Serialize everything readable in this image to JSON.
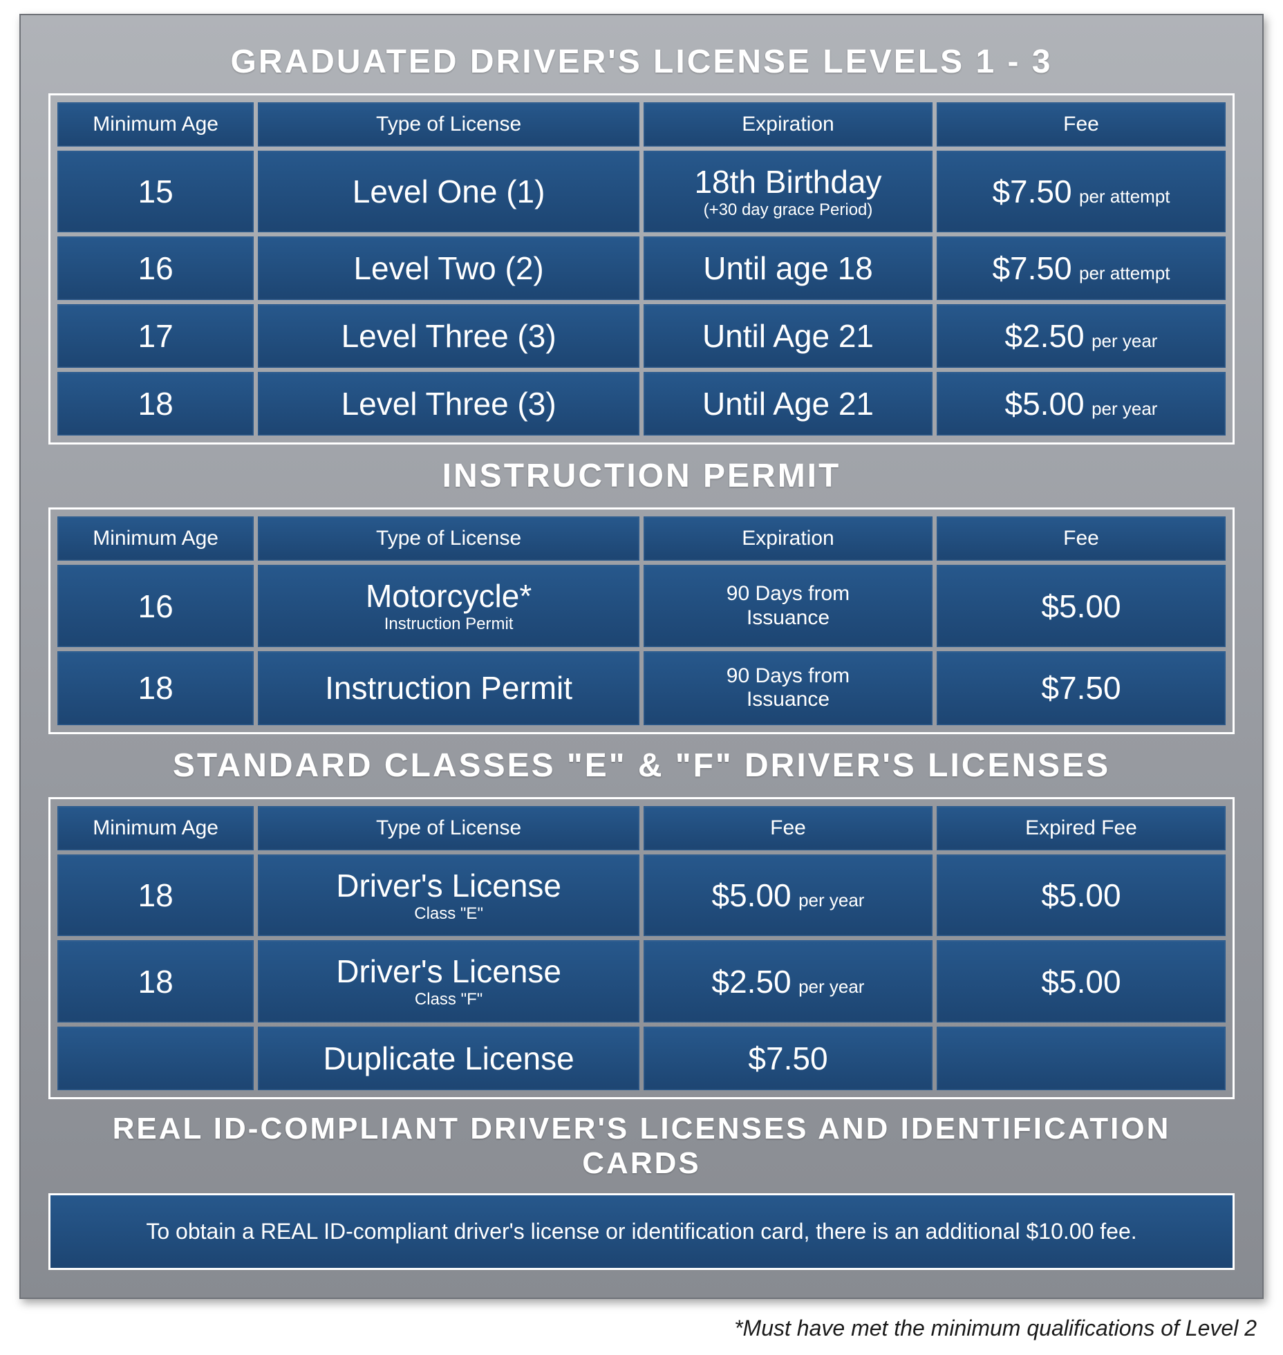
{
  "colors": {
    "panel_bg_top": "#b0b3b8",
    "panel_bg_bottom": "#888b91",
    "cell_bg_top": "#27588c",
    "cell_bg_bottom": "#1d4572",
    "border_white": "#ffffff",
    "text_white": "#ffffff",
    "footnote_color": "#1a1a1a"
  },
  "sections": {
    "graduated": {
      "title": "GRADUATED DRIVER'S LICENSE LEVELS  1 - 3",
      "headers": [
        "Minimum Age",
        "Type of License",
        "Expiration",
        "Fee"
      ],
      "rows": [
        {
          "age": "15",
          "type": "Level One (1)",
          "exp_main": "18th Birthday",
          "exp_sub": "(+30 day grace Period)",
          "fee_main": "$7.50",
          "fee_sub": "per attempt"
        },
        {
          "age": "16",
          "type": "Level Two (2)",
          "exp_main": "Until age 18",
          "exp_sub": "",
          "fee_main": "$7.50",
          "fee_sub": "per attempt"
        },
        {
          "age": "17",
          "type": "Level Three (3)",
          "exp_main": "Until Age 21",
          "exp_sub": "",
          "fee_main": "$2.50",
          "fee_sub": "per year"
        },
        {
          "age": "18",
          "type": "Level Three (3)",
          "exp_main": "Until Age 21",
          "exp_sub": "",
          "fee_main": "$5.00",
          "fee_sub": "per year"
        }
      ]
    },
    "instruction": {
      "title": "INSTRUCTION PERMIT",
      "headers": [
        "Minimum Age",
        "Type of License",
        "Expiration",
        "Fee"
      ],
      "rows": [
        {
          "age": "16",
          "type_main": "Motorcycle*",
          "type_sub": "Instruction Permit",
          "exp_main": "90 Days from",
          "exp_sub": "Issuance",
          "fee_main": "$5.00",
          "fee_sub": ""
        },
        {
          "age": "18",
          "type_main": "Instruction Permit",
          "type_sub": "",
          "exp_main": "90 Days from",
          "exp_sub": "Issuance",
          "fee_main": "$7.50",
          "fee_sub": ""
        }
      ]
    },
    "standard": {
      "title": "STANDARD CLASSES \"E\" & \"F\" DRIVER'S LICENSES",
      "headers": [
        "Minimum Age",
        "Type of License",
        "Fee",
        "Expired Fee"
      ],
      "rows": [
        {
          "age": "18",
          "type_main": "Driver's License",
          "type_sub": "Class \"E\"",
          "fee_main": "$5.00",
          "fee_sub": "per year",
          "exp_fee": "$5.00"
        },
        {
          "age": "18",
          "type_main": "Driver's License",
          "type_sub": "Class \"F\"",
          "fee_main": "$2.50",
          "fee_sub": "per year",
          "exp_fee": "$5.00"
        },
        {
          "age": "",
          "type_main": "Duplicate License",
          "type_sub": "",
          "fee_main": "$7.50",
          "fee_sub": "",
          "exp_fee": ""
        }
      ]
    },
    "realid": {
      "title": "REAL ID-COMPLIANT DRIVER'S LICENSES AND IDENTIFICATION CARDS",
      "text": "To obtain a REAL ID-compliant driver's license or identification card, there is an additional $10.00 fee."
    }
  },
  "footnote": "*Must have met the minimum qualifications of Level 2"
}
